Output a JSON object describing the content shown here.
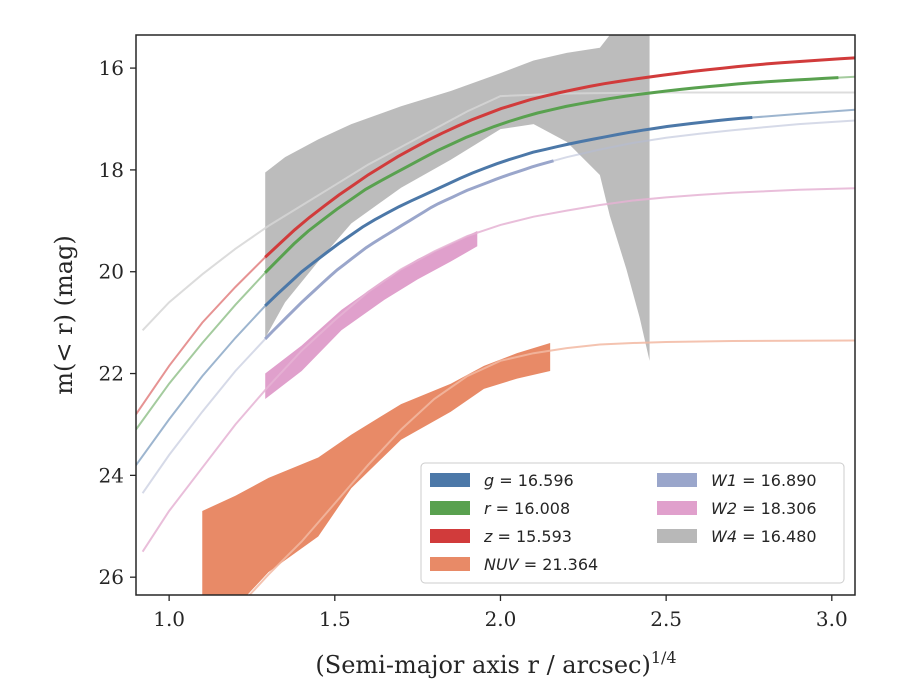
{
  "chart_data": {
    "type": "line",
    "xlabel": "(Semi-major axis r / arcsec)",
    "xlabel_superscript": "1/4",
    "ylabel": "m(< r) (mag)",
    "xlim": [
      0.9,
      3.07
    ],
    "ylim": [
      26.35,
      15.35
    ],
    "y_inverted": true,
    "xticks": [
      1.0,
      1.5,
      2.0,
      2.5,
      3.0
    ],
    "xtick_labels": [
      "1.0",
      "1.5",
      "2.0",
      "2.5",
      "3.0"
    ],
    "yticks": [
      16,
      18,
      20,
      22,
      24,
      26
    ],
    "ytick_labels": [
      "16",
      "18",
      "20",
      "22",
      "24",
      "26"
    ],
    "grid": false,
    "legend_position": "lower-right",
    "series": [
      {
        "band": "g",
        "legend_value": "16.596",
        "color": "#4C78A8",
        "model_color": "#4C78A8",
        "model": [
          [
            0.9,
            23.8
          ],
          [
            1.0,
            22.9
          ],
          [
            1.1,
            22.05
          ],
          [
            1.2,
            21.3
          ],
          [
            1.3,
            20.6
          ],
          [
            1.4,
            20.0
          ],
          [
            1.5,
            19.5
          ],
          [
            1.6,
            19.05
          ],
          [
            1.7,
            18.7
          ],
          [
            1.8,
            18.4
          ],
          [
            1.9,
            18.1
          ],
          [
            2.0,
            17.85
          ],
          [
            2.1,
            17.65
          ],
          [
            2.2,
            17.5
          ],
          [
            2.3,
            17.37
          ],
          [
            2.4,
            17.25
          ],
          [
            2.5,
            17.15
          ],
          [
            2.6,
            17.07
          ],
          [
            2.7,
            17.0
          ],
          [
            2.8,
            16.95
          ],
          [
            2.9,
            16.9
          ],
          [
            3.07,
            16.82
          ]
        ],
        "data_x": [
          1.29,
          2.76
        ],
        "band_x": [],
        "band_lo": [],
        "band_hi": []
      },
      {
        "band": "r",
        "legend_value": "16.008",
        "color": "#59A14F",
        "model_color": "#59A14F",
        "model": [
          [
            0.9,
            23.1
          ],
          [
            1.0,
            22.2
          ],
          [
            1.1,
            21.4
          ],
          [
            1.2,
            20.65
          ],
          [
            1.3,
            19.95
          ],
          [
            1.4,
            19.3
          ],
          [
            1.5,
            18.8
          ],
          [
            1.6,
            18.35
          ],
          [
            1.7,
            18.0
          ],
          [
            1.8,
            17.65
          ],
          [
            1.9,
            17.35
          ],
          [
            2.0,
            17.1
          ],
          [
            2.1,
            16.9
          ],
          [
            2.2,
            16.75
          ],
          [
            2.3,
            16.63
          ],
          [
            2.4,
            16.53
          ],
          [
            2.5,
            16.45
          ],
          [
            2.6,
            16.38
          ],
          [
            2.7,
            16.32
          ],
          [
            2.8,
            16.27
          ],
          [
            2.9,
            16.23
          ],
          [
            3.07,
            16.17
          ]
        ],
        "data_x": [
          1.29,
          3.02
        ],
        "band_x": [],
        "band_lo": [],
        "band_hi": []
      },
      {
        "band": "z",
        "legend_value": "15.593",
        "color": "#D13B3B",
        "model_color": "#D13B3B",
        "model": [
          [
            0.9,
            22.8
          ],
          [
            1.0,
            21.85
          ],
          [
            1.1,
            21.0
          ],
          [
            1.2,
            20.3
          ],
          [
            1.3,
            19.65
          ],
          [
            1.4,
            19.05
          ],
          [
            1.5,
            18.55
          ],
          [
            1.6,
            18.1
          ],
          [
            1.7,
            17.7
          ],
          [
            1.8,
            17.35
          ],
          [
            1.9,
            17.05
          ],
          [
            2.0,
            16.8
          ],
          [
            2.1,
            16.6
          ],
          [
            2.2,
            16.45
          ],
          [
            2.3,
            16.32
          ],
          [
            2.4,
            16.22
          ],
          [
            2.5,
            16.13
          ],
          [
            2.6,
            16.05
          ],
          [
            2.7,
            15.98
          ],
          [
            2.8,
            15.92
          ],
          [
            2.9,
            15.87
          ],
          [
            3.07,
            15.8
          ]
        ],
        "data_x": [
          1.29,
          3.07
        ],
        "band_x": [],
        "band_lo": [],
        "band_hi": []
      },
      {
        "band": "NUV",
        "legend_value": "21.364",
        "color": "#E88A67",
        "model_color": "#F2B9A2",
        "model": [
          [
            1.1,
            27.3
          ],
          [
            1.2,
            26.65
          ],
          [
            1.3,
            25.95
          ],
          [
            1.4,
            25.3
          ],
          [
            1.5,
            24.55
          ],
          [
            1.6,
            23.8
          ],
          [
            1.7,
            23.1
          ],
          [
            1.8,
            22.5
          ],
          [
            1.9,
            22.05
          ],
          [
            2.0,
            21.75
          ],
          [
            2.1,
            21.6
          ],
          [
            2.2,
            21.5
          ],
          [
            2.3,
            21.43
          ],
          [
            2.4,
            21.4
          ],
          [
            2.5,
            21.38
          ],
          [
            2.7,
            21.36
          ],
          [
            3.07,
            21.35
          ]
        ],
        "data_x": [],
        "band_x": [
          1.1,
          1.2,
          1.3,
          1.45,
          1.55,
          1.7,
          1.85,
          1.95,
          2.05,
          2.15
        ],
        "band_lo": [
          24.7,
          24.4,
          24.05,
          23.65,
          23.2,
          22.6,
          22.2,
          21.85,
          21.6,
          21.4
        ],
        "band_hi": [
          26.8,
          26.6,
          25.9,
          25.2,
          24.25,
          23.3,
          22.75,
          22.3,
          22.1,
          21.95
        ]
      },
      {
        "band": "W1",
        "legend_value": "16.890",
        "color": "#9AA6CB",
        "model_color": "#B5BCD6",
        "model": [
          [
            0.92,
            24.35
          ],
          [
            1.0,
            23.6
          ],
          [
            1.1,
            22.75
          ],
          [
            1.2,
            21.95
          ],
          [
            1.3,
            21.25
          ],
          [
            1.4,
            20.6
          ],
          [
            1.5,
            20.0
          ],
          [
            1.6,
            19.5
          ],
          [
            1.7,
            19.1
          ],
          [
            1.8,
            18.7
          ],
          [
            1.9,
            18.4
          ],
          [
            2.0,
            18.15
          ],
          [
            2.1,
            17.93
          ],
          [
            2.2,
            17.75
          ],
          [
            2.3,
            17.6
          ],
          [
            2.4,
            17.47
          ],
          [
            2.5,
            17.37
          ],
          [
            2.6,
            17.29
          ],
          [
            2.7,
            17.22
          ],
          [
            2.8,
            17.16
          ],
          [
            2.9,
            17.1
          ],
          [
            3.07,
            17.03
          ]
        ],
        "data_x": [
          1.29,
          2.16
        ],
        "band_x": [],
        "band_lo": [],
        "band_hi": []
      },
      {
        "band": "W2",
        "legend_value": "18.306",
        "color": "#E0A0CC",
        "model_color": "#E5B3D4",
        "model": [
          [
            0.92,
            25.5
          ],
          [
            1.0,
            24.7
          ],
          [
            1.1,
            23.85
          ],
          [
            1.2,
            23.0
          ],
          [
            1.3,
            22.25
          ],
          [
            1.4,
            21.55
          ],
          [
            1.5,
            20.95
          ],
          [
            1.6,
            20.4
          ],
          [
            1.7,
            19.95
          ],
          [
            1.8,
            19.6
          ],
          [
            1.9,
            19.3
          ],
          [
            2.0,
            19.08
          ],
          [
            2.1,
            18.92
          ],
          [
            2.2,
            18.8
          ],
          [
            2.3,
            18.69
          ],
          [
            2.4,
            18.6
          ],
          [
            2.5,
            18.54
          ],
          [
            2.6,
            18.49
          ],
          [
            2.7,
            18.45
          ],
          [
            2.8,
            18.42
          ],
          [
            2.9,
            18.39
          ],
          [
            3.07,
            18.36
          ]
        ],
        "data_x": [],
        "band_x": [
          1.29,
          1.4,
          1.52,
          1.65,
          1.75,
          1.85,
          1.93
        ],
        "band_lo": [
          22.0,
          21.45,
          20.75,
          20.15,
          19.75,
          19.45,
          19.2
        ],
        "band_hi": [
          22.5,
          21.95,
          21.15,
          20.55,
          20.15,
          19.8,
          19.5
        ]
      },
      {
        "band": "W4",
        "legend_value": "16.480",
        "color": "#B8B8B8",
        "model_color": "#D6D6D6",
        "model": [
          [
            0.92,
            21.15
          ],
          [
            1.0,
            20.6
          ],
          [
            1.1,
            20.05
          ],
          [
            1.2,
            19.55
          ],
          [
            1.3,
            19.1
          ],
          [
            1.4,
            18.7
          ],
          [
            1.5,
            18.3
          ],
          [
            1.6,
            17.9
          ],
          [
            1.7,
            17.55
          ],
          [
            1.8,
            17.2
          ],
          [
            1.9,
            16.85
          ],
          [
            2.0,
            16.55
          ],
          [
            2.2,
            16.5
          ],
          [
            2.5,
            16.48
          ],
          [
            3.07,
            16.48
          ]
        ],
        "data_x": [],
        "band_x": [
          1.29,
          1.35,
          1.45,
          1.55,
          1.7,
          1.85,
          2.0,
          2.1,
          2.2,
          2.3,
          2.33,
          2.38,
          2.42,
          2.45
        ],
        "band_lo": [
          18.05,
          17.75,
          17.4,
          17.1,
          16.75,
          16.45,
          16.1,
          15.85,
          15.7,
          15.6,
          15.35,
          15.35,
          15.35,
          15.35
        ],
        "band_hi": [
          21.3,
          20.6,
          19.8,
          19.05,
          18.35,
          17.8,
          17.2,
          17.1,
          17.45,
          18.1,
          18.9,
          19.95,
          20.9,
          21.75
        ]
      }
    ],
    "legend_columns": [
      [
        {
          "band": "g",
          "text": "= 16.596"
        },
        {
          "band": "r",
          "text": "= 16.008"
        },
        {
          "band": "z",
          "text": "= 15.593"
        },
        {
          "band": "NUV",
          "text": "= 21.364"
        }
      ],
      [
        {
          "band": "W1",
          "text": "= 16.890"
        },
        {
          "band": "W2",
          "text": "= 18.306"
        },
        {
          "band": "W4",
          "text": "= 16.480"
        }
      ]
    ]
  }
}
